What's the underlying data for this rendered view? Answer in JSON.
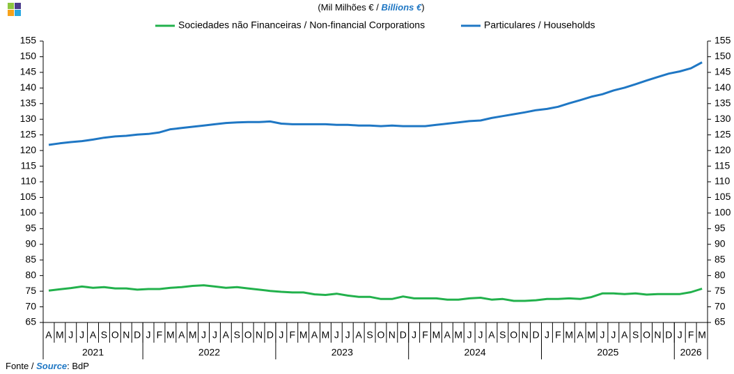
{
  "chart_data": {
    "type": "line",
    "unit": {
      "pt": "(Mil Milhões € / ",
      "en": "Billions €",
      "close": ")"
    },
    "source": {
      "pt": "Fonte / ",
      "en": "Source",
      "rest": ": BdP"
    },
    "categories": [
      "A",
      "M",
      "J",
      "J",
      "A",
      "S",
      "O",
      "N",
      "D",
      "J",
      "F",
      "M",
      "A",
      "M",
      "J",
      "J",
      "A",
      "S",
      "O",
      "N",
      "D",
      "J",
      "F",
      "M",
      "A",
      "M",
      "J",
      "J",
      "A",
      "S",
      "O",
      "N",
      "D",
      "J",
      "F",
      "M",
      "A",
      "M",
      "J",
      "J",
      "A",
      "S",
      "O",
      "N",
      "D",
      "J",
      "F",
      "M",
      "A",
      "M",
      "J",
      "J",
      "A",
      "S",
      "O",
      "N",
      "D",
      "J",
      "F",
      "M"
    ],
    "years": [
      {
        "label": "2021",
        "count": 9
      },
      {
        "label": "2022",
        "count": 12
      },
      {
        "label": "2023",
        "count": 12
      },
      {
        "label": "2024",
        "count": 12
      },
      {
        "label": "2025",
        "count": 12
      },
      {
        "label": "2026",
        "count": 3
      }
    ],
    "series": [
      {
        "name": "Sociedades não Financeiras / Non-financial Corporations",
        "color": "#22b14c",
        "values": [
          75.2,
          75.6,
          76.0,
          76.5,
          76.1,
          76.3,
          75.9,
          75.9,
          75.5,
          75.7,
          75.7,
          76.1,
          76.3,
          76.7,
          76.9,
          76.5,
          76.1,
          76.3,
          75.9,
          75.5,
          75.1,
          74.8,
          74.6,
          74.6,
          74.0,
          73.8,
          74.2,
          73.6,
          73.2,
          73.2,
          72.5,
          72.5,
          73.3,
          72.7,
          72.7,
          72.7,
          72.3,
          72.3,
          72.7,
          72.9,
          72.3,
          72.5,
          71.9,
          71.9,
          72.1,
          72.5,
          72.5,
          72.7,
          72.5,
          73.1,
          74.3,
          74.3,
          74.1,
          74.3,
          73.9,
          74.1,
          74.1,
          74.1,
          74.7,
          75.8
        ]
      },
      {
        "name": "Particulares / Households",
        "color": "#1f77c4",
        "values": [
          121.8,
          122.3,
          122.7,
          123.0,
          123.5,
          124.1,
          124.5,
          124.7,
          125.1,
          125.3,
          125.8,
          126.8,
          127.2,
          127.6,
          128.0,
          128.4,
          128.8,
          129.0,
          129.1,
          129.1,
          129.3,
          128.6,
          128.4,
          128.4,
          128.4,
          128.4,
          128.2,
          128.2,
          128.0,
          128.0,
          127.8,
          128.0,
          127.8,
          127.8,
          127.8,
          128.2,
          128.6,
          129.0,
          129.4,
          129.6,
          130.4,
          131.0,
          131.6,
          132.2,
          132.9,
          133.3,
          134.0,
          135.1,
          136.1,
          137.2,
          138.0,
          139.2,
          140.1,
          141.2,
          142.4,
          143.5,
          144.6,
          145.3,
          146.3,
          148.2
        ]
      }
    ],
    "ylim": [
      65,
      155
    ],
    "yticks": [
      65,
      70,
      75,
      80,
      85,
      90,
      95,
      100,
      105,
      110,
      115,
      120,
      125,
      130,
      135,
      140,
      145,
      150,
      155
    ],
    "y2lim": [
      65,
      155
    ],
    "y2ticks": [
      65,
      70,
      75,
      80,
      85,
      90,
      95,
      100,
      105,
      110,
      115,
      120,
      125,
      130,
      135,
      140,
      145,
      150,
      155
    ],
    "grid": false
  }
}
